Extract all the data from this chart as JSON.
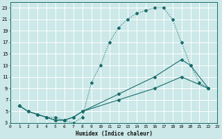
{
  "xlabel": "Humidex (Indice chaleur)",
  "bg_color": "#cce8e8",
  "line_color": "#1a6b6b",
  "grid_color": "#ffffff",
  "xlim": [
    0,
    23
  ],
  "ylim": [
    3,
    24
  ],
  "xticks": [
    0,
    1,
    2,
    3,
    4,
    5,
    6,
    7,
    8,
    9,
    10,
    11,
    12,
    13,
    14,
    15,
    16,
    17,
    18,
    19,
    20,
    21,
    22,
    23
  ],
  "yticks": [
    3,
    5,
    7,
    9,
    11,
    13,
    15,
    17,
    19,
    21,
    23
  ],
  "curve1_x": [
    1,
    2,
    3,
    4,
    5,
    6,
    7,
    8,
    9,
    10,
    11,
    12,
    13,
    14,
    15,
    16,
    17,
    18,
    19,
    20,
    21,
    22
  ],
  "curve1_y": [
    6,
    5,
    4.5,
    4,
    4,
    3.5,
    3,
    4,
    10,
    13,
    17,
    19.5,
    21,
    22,
    22.5,
    23,
    23,
    21,
    17,
    13,
    10,
    9
  ],
  "curve1_style": "dotted",
  "curve2_x": [
    1,
    2,
    3,
    4,
    5,
    6,
    7,
    8,
    12,
    16,
    19,
    20,
    22
  ],
  "curve2_y": [
    6,
    5,
    4.5,
    4,
    3.5,
    3.5,
    4,
    5,
    8,
    11,
    14,
    13,
    9
  ],
  "curve2_style": "solid",
  "curve3_x": [
    1,
    2,
    3,
    4,
    5,
    6,
    7,
    8,
    12,
    16,
    19,
    22
  ],
  "curve3_y": [
    6,
    5,
    4.5,
    4,
    3.5,
    3.5,
    4,
    5,
    7,
    9,
    11,
    9
  ],
  "curve3_style": "solid"
}
